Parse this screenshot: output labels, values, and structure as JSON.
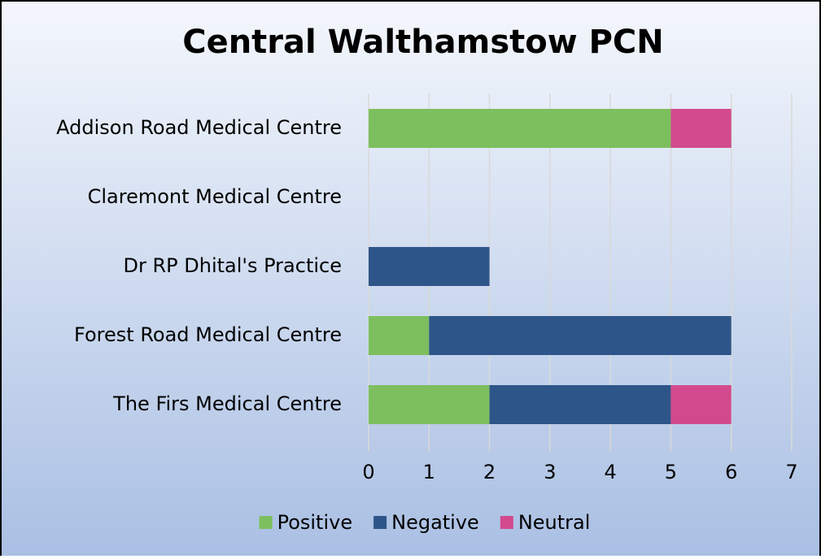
{
  "chart_data": {
    "type": "stacked_barh",
    "title": "Central Walthamstow PCN",
    "categories": [
      "Addison Road Medical Centre",
      "Claremont Medical Centre",
      "Dr RP Dhital's Practice",
      "Forest Road Medical Centre",
      "The Firs Medical Centre"
    ],
    "series": [
      {
        "name": "Positive",
        "color": "#7dbf5e",
        "values": [
          5,
          0,
          0,
          1,
          2
        ]
      },
      {
        "name": "Negative",
        "color": "#2e5589",
        "values": [
          0,
          0,
          2,
          5,
          3
        ]
      },
      {
        "name": "Neutral",
        "color": "#d24a8d",
        "values": [
          1,
          0,
          0,
          0,
          1
        ]
      }
    ],
    "xlim": [
      0,
      7
    ],
    "xticks": [
      0,
      1,
      2,
      3,
      4,
      5,
      6,
      7
    ],
    "grid": true,
    "legend": "bottom"
  }
}
